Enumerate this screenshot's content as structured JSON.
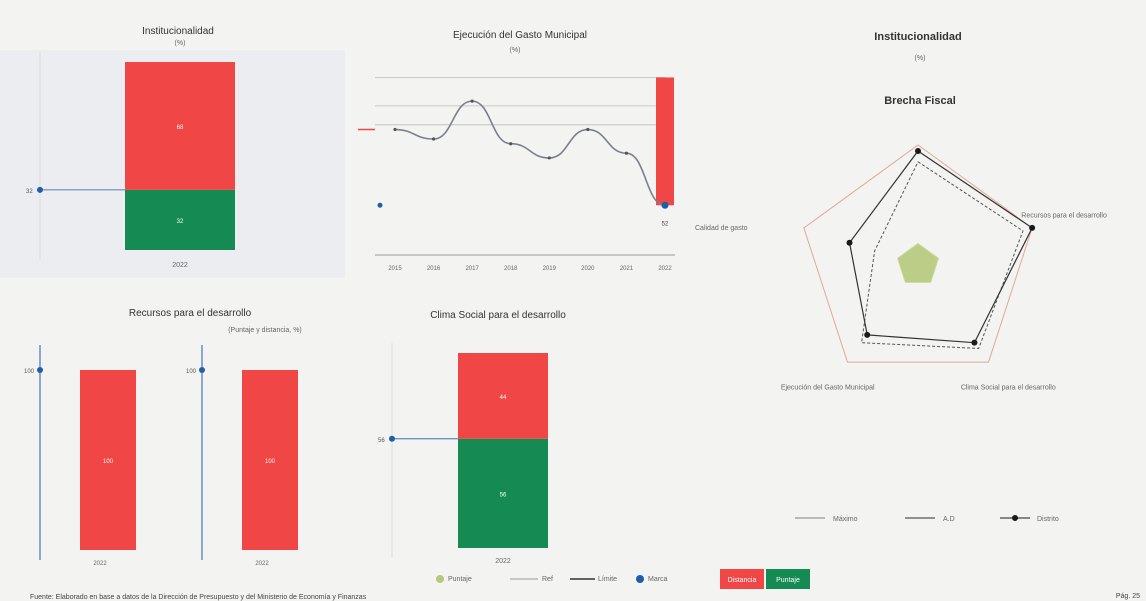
{
  "colors": {
    "red": "#f04646",
    "green": "#158a52",
    "blue": "#1f5fa8",
    "olive": "#b7c97c",
    "grey": "#888888"
  },
  "chart_data": [
    {
      "id": "institucionalidad-bar",
      "type": "bar",
      "title": "Institucionalidad",
      "subtitle": "(%)",
      "category_label": "2022",
      "segments": [
        {
          "name": "Distancia",
          "value": 68,
          "color": "#f04646"
        },
        {
          "name": "Puntaje",
          "value": 32,
          "color": "#158a52"
        }
      ],
      "marker": {
        "label": "32",
        "value": 32
      },
      "ylim": [
        0,
        100
      ]
    },
    {
      "id": "ejecucion-line",
      "type": "line",
      "title": "Ejecución del Gasto Municipal",
      "subtitle": "(%)",
      "categories": [
        "2015",
        "2016",
        "2017",
        "2018",
        "2019",
        "2020",
        "2021",
        "2022"
      ],
      "values": [
        84,
        80,
        96,
        78,
        72,
        84,
        74,
        52
      ],
      "bar_value": 106,
      "ref_top": 106,
      "ref_mid": 94,
      "ref_low": 86,
      "side_label": "Calidad de gasto",
      "marker_label": "52",
      "ylim": [
        50,
        110
      ]
    },
    {
      "id": "recursos-bars",
      "type": "bar",
      "title": "Recursos para el desarrollo",
      "subtitle": "(Puntaje y distancia, %)",
      "bars": [
        {
          "category": "2022",
          "value": 100,
          "marker": 100
        },
        {
          "category": "2022",
          "value": 100,
          "marker": 100
        }
      ],
      "ylim": [
        0,
        100
      ]
    },
    {
      "id": "clima-bar",
      "type": "bar",
      "title": "Clima Social para el desarrollo",
      "category_label": "2022",
      "segments": [
        {
          "name": "Distancia",
          "value": 44,
          "color": "#f04646"
        },
        {
          "name": "Puntaje",
          "value": 56,
          "color": "#158a52"
        }
      ],
      "marker": {
        "label": "56",
        "value": 56
      },
      "ylim": [
        0,
        100
      ]
    },
    {
      "id": "brecha-radar",
      "type": "radar",
      "title": "Institucionalidad",
      "subtitle": "(%)",
      "subtitle2": "Brecha Fiscal",
      "axes": [
        {
          "label": "",
          "value": 95
        },
        {
          "label": "Recursos para el desarrollo",
          "value": 100
        },
        {
          "label": "Clima Social para el desarrollo",
          "value": 80
        },
        {
          "label": "Ejecución del Gasto Municipal",
          "value": 72
        },
        {
          "label": "",
          "value": 60
        }
      ],
      "distance_values": [
        86,
        92,
        86,
        80,
        38
      ],
      "max_values": [
        100,
        100,
        100,
        100,
        100
      ],
      "inner_value": 18,
      "legend": [
        "Máximo",
        "A.D",
        "Distrito"
      ]
    }
  ],
  "legend": {
    "items": [
      "Puntaje",
      "Ref",
      "Límite",
      "Marca"
    ],
    "red_label": "Distancia",
    "green_label": "Puntaje"
  },
  "footer": {
    "text": "Fuente: Elaborado en base a datos de la Dirección de Presupuesto y del Ministerio de Economía y Finanzas",
    "page": "Pág. 25"
  }
}
